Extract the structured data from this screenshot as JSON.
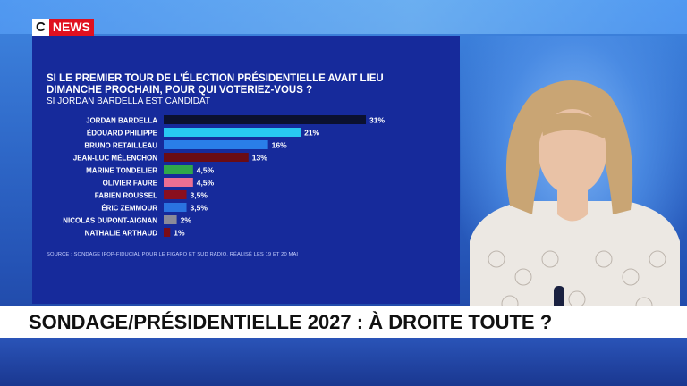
{
  "channel": {
    "logo_c": "C",
    "logo_news": "NEWS"
  },
  "poll": {
    "question": "SI LE PREMIER TOUR DE L'ÉLECTION PRÉSIDENTIELLE AVAIT LIEU DIMANCHE PROCHAIN, POUR QUI VOTERIEZ-VOUS ?",
    "subtitle": "SI JORDAN BARDELLA EST CANDIDAT",
    "source": "SOURCE : SONDAGE IFOP-FIDUCIAL POUR LE FIGARO ET SUD RADIO, RÉALISÉ LES 19 ET 20 MAI"
  },
  "chart_data": {
    "type": "bar",
    "orientation": "horizontal",
    "title": "SI LE PREMIER TOUR DE L'ÉLECTION PRÉSIDENTIELLE AVAIT LIEU DIMANCHE PROCHAIN, POUR QUI VOTERIEZ-VOUS ?",
    "subtitle": "SI JORDAN BARDELLA EST CANDIDAT",
    "categories": [
      "JORDAN BARDELLA",
      "ÉDOUARD PHILIPPE",
      "BRUNO RETAILLEAU",
      "JEAN-LUC MÉLENCHON",
      "MARINE TONDELIER",
      "OLIVIER FAURE",
      "FABIEN ROUSSEL",
      "ÉRIC ZEMMOUR",
      "NICOLAS DUPONT-AIGNAN",
      "NATHALIE ARTHAUD"
    ],
    "values": [
      31,
      21,
      16,
      13,
      4.5,
      4.5,
      3.5,
      3.5,
      2,
      1
    ],
    "value_labels": [
      "31%",
      "21%",
      "16%",
      "13%",
      "4,5%",
      "4,5%",
      "3,5%",
      "3,5%",
      "2%",
      "1%"
    ],
    "colors": [
      "#0b1130",
      "#28c8f2",
      "#2a7ee8",
      "#6a0c14",
      "#2fa84a",
      "#ec6f93",
      "#8a0f1e",
      "#2a73e0",
      "#8a8a99",
      "#7a0c18"
    ],
    "grid": false
  },
  "banner": {
    "text": "SONDAGE/PRÉSIDENTIELLE 2027 : À DROITE TOUTE ?"
  }
}
